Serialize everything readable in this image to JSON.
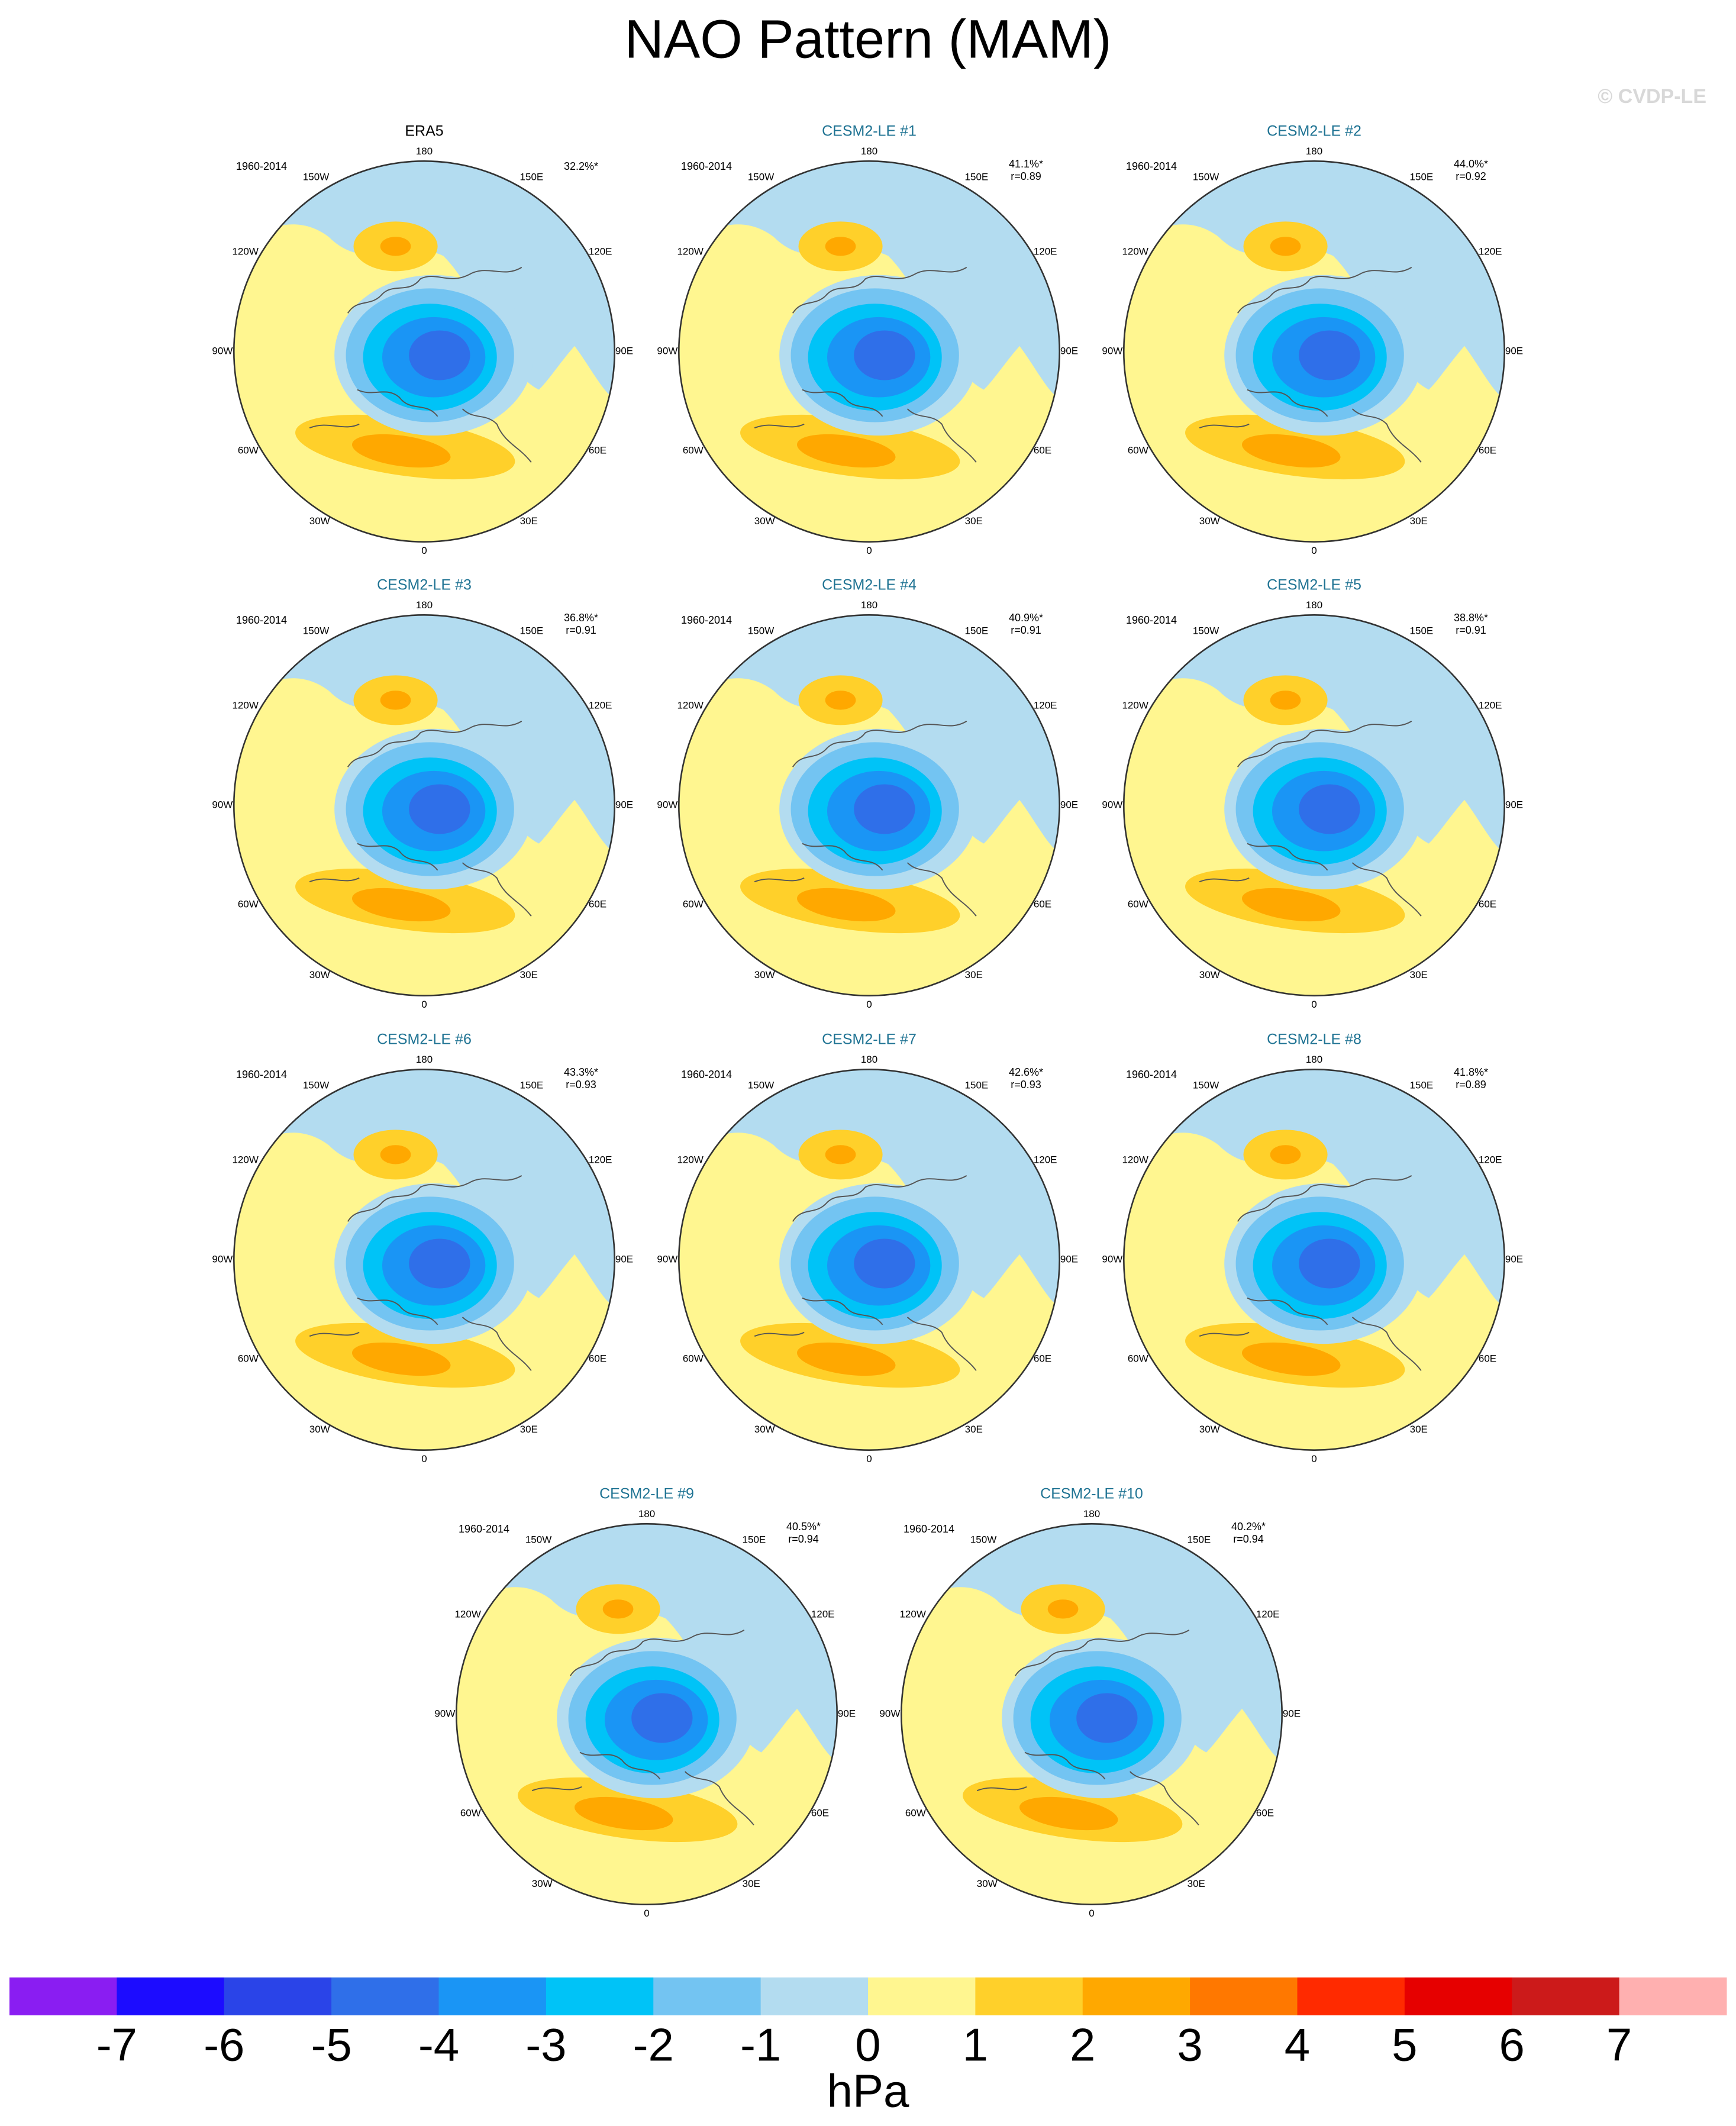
{
  "title": "NAO Pattern (MAM)",
  "watermark": "© CVDP-LE",
  "lon_labels": [
    "180",
    "150E",
    "120E",
    "90E",
    "60E",
    "30E",
    "0",
    "30W",
    "60W",
    "90W",
    "120W",
    "150W"
  ],
  "panels": [
    {
      "title": "ERA5",
      "period": "1960-2014",
      "variance": "32.2%*"
    },
    {
      "title": "CESM2-LE #1",
      "period": "1960-2014",
      "variance": "41.1%*",
      "r": "r=0.89"
    },
    {
      "title": "CESM2-LE #2",
      "period": "1960-2014",
      "variance": "44.0%*",
      "r": "r=0.92"
    },
    {
      "title": "CESM2-LE #3",
      "period": "1960-2014",
      "variance": "36.8%*",
      "r": "r=0.91"
    },
    {
      "title": "CESM2-LE #4",
      "period": "1960-2014",
      "variance": "40.9%*",
      "r": "r=0.91"
    },
    {
      "title": "CESM2-LE #5",
      "period": "1960-2014",
      "variance": "38.8%*",
      "r": "r=0.91"
    },
    {
      "title": "CESM2-LE #6",
      "period": "1960-2014",
      "variance": "43.3%*",
      "r": "r=0.93"
    },
    {
      "title": "CESM2-LE #7",
      "period": "1960-2014",
      "variance": "42.6%*",
      "r": "r=0.93"
    },
    {
      "title": "CESM2-LE #8",
      "period": "1960-2014",
      "variance": "41.8%*",
      "r": "r=0.89"
    },
    {
      "title": "CESM2-LE #9",
      "period": "1960-2014",
      "variance": "40.5%*",
      "r": "r=0.94"
    },
    {
      "title": "CESM2-LE #10",
      "period": "1960-2014",
      "variance": "40.2%*",
      "r": "r=0.94"
    }
  ],
  "colorbar": {
    "ticks": [
      -7,
      -6,
      -5,
      -4,
      -3,
      -2,
      -1,
      0,
      1,
      2,
      3,
      4,
      5,
      6,
      7
    ],
    "colors": [
      "#8a1df2",
      "#1c0cff",
      "#2a44e8",
      "#2f6fe9",
      "#1a95f5",
      "#00c3f7",
      "#73c4f2",
      "#b3dcf0",
      "#fff690",
      "#ffd02a",
      "#ffa800",
      "#ff7800",
      "#ff2a00",
      "#e60000",
      "#cc1a1a",
      "#ffb0b0"
    ],
    "unit": "hPa"
  }
}
